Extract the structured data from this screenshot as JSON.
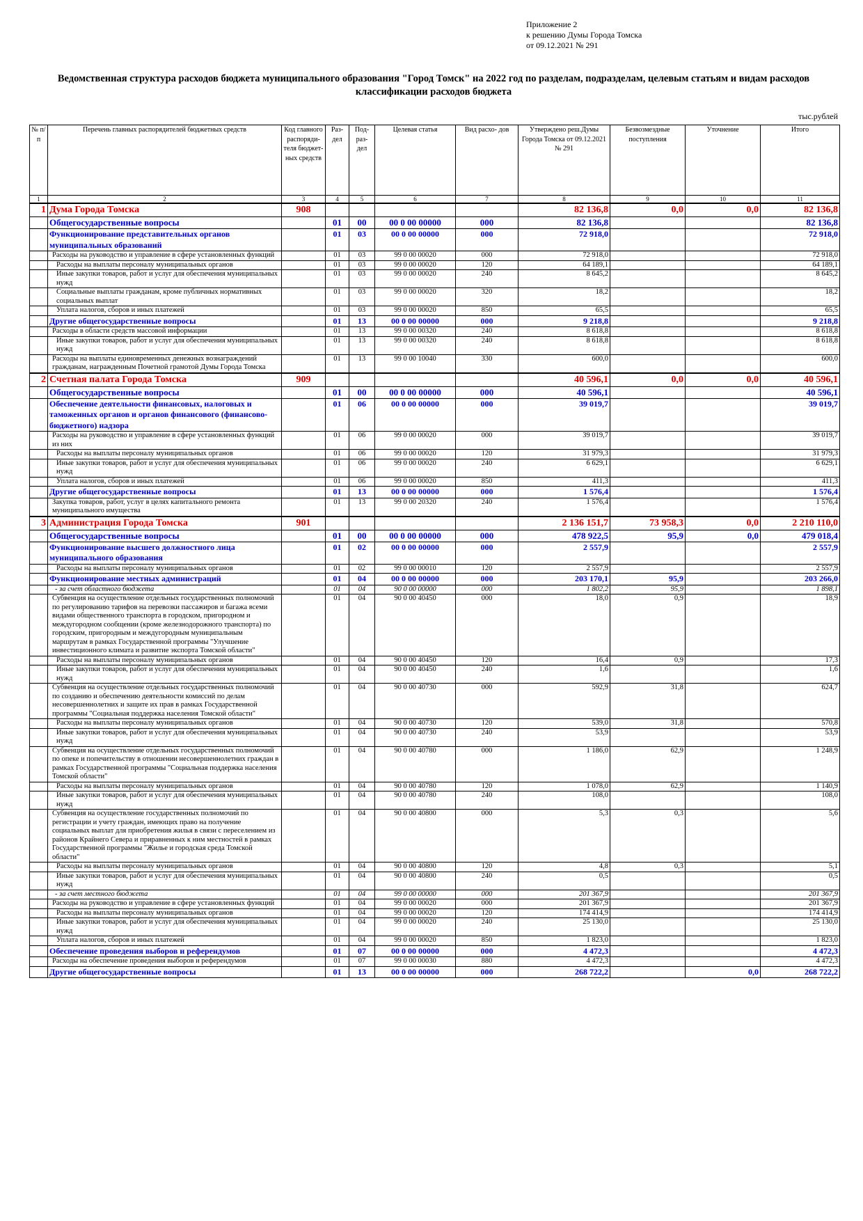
{
  "header": {
    "attachment_lines": [
      "Приложение 2",
      "к решению Думы Города Томска",
      "от 09.12.2021 № 291"
    ],
    "title": "Ведомственная структура расходов бюджета муниципального образования \"Город Томск\" на 2022 год по разделам, подразделам, целевым статьям и видам расходов классификации расходов бюджета",
    "units": "тыс.рублей"
  },
  "table": {
    "columns": [
      "№ п/п",
      "Перечень главных распорядителей бюджетных средств",
      "Код главного распоряди- теля бюджет- ных средств",
      "Раз- дел",
      "Под- раз- дел",
      "Целевая статья",
      "Вид расхо- дов",
      "Утверждено реш.Думы Города Томска от 09.12.2021 № 291",
      "Безвозмездные поступления",
      "Уточнение",
      "Итого"
    ],
    "column_numbers": [
      "1",
      "2",
      "3",
      "4",
      "5",
      "6",
      "7",
      "8",
      "9",
      "10",
      "11"
    ],
    "rows": [
      {
        "lvl": "lvl0",
        "c1": "1",
        "c2": "Дума Города Томска",
        "c3": "908",
        "c4": "",
        "c5": "",
        "c6": "",
        "c7": "",
        "c8": "82 136,8",
        "c9": "0,0",
        "c10": "0,0",
        "c11": "82 136,8"
      },
      {
        "lvl": "lvl1",
        "c1": "",
        "c2": "Общегосударственные вопросы",
        "c3": "",
        "c4": "01",
        "c5": "00",
        "c6": "00 0 00 00000",
        "c7": "000",
        "c8": "82 136,8",
        "c9": "",
        "c10": "",
        "c11": "82 136,8"
      },
      {
        "lvl": "lvl2",
        "c1": "",
        "c2": "Функционирование представительных органов муниципальных образований",
        "c3": "",
        "c4": "01",
        "c5": "03",
        "c6": "00 0 00 00000",
        "c7": "000",
        "c8": "72 918,0",
        "c9": "",
        "c10": "",
        "c11": "72 918,0"
      },
      {
        "lvl": "lvl3",
        "c1": "",
        "c2": "Расходы на руководство и управление в сфере установленных функций",
        "c3": "",
        "c4": "01",
        "c5": "03",
        "c6": "99 0 00 00020",
        "c7": "000",
        "c8": "72 918,0",
        "c9": "",
        "c10": "",
        "c11": "72 918,0"
      },
      {
        "lvl": "lvl4",
        "c1": "",
        "c2": "Расходы на выплаты персоналу муниципальных органов",
        "c3": "",
        "c4": "01",
        "c5": "03",
        "c6": "99 0 00 00020",
        "c7": "120",
        "c8": "64 189,1",
        "c9": "",
        "c10": "",
        "c11": "64 189,1"
      },
      {
        "lvl": "lvl4",
        "c1": "",
        "c2": "Иные закупки товаров, работ и услуг для обеспечения муниципальных нужд",
        "c3": "",
        "c4": "01",
        "c5": "03",
        "c6": "99 0 00 00020",
        "c7": "240",
        "c8": "8 645,2",
        "c9": "",
        "c10": "",
        "c11": "8 645,2"
      },
      {
        "lvl": "lvl4",
        "c1": "",
        "c2": "Социальные выплаты гражданам, кроме публичных нормативных социальных выплат",
        "c3": "",
        "c4": "01",
        "c5": "03",
        "c6": "99 0 00 00020",
        "c7": "320",
        "c8": "18,2",
        "c9": "",
        "c10": "",
        "c11": "18,2"
      },
      {
        "lvl": "lvl4",
        "c1": "",
        "c2": "Уплата налогов, сборов и иных платежей",
        "c3": "",
        "c4": "01",
        "c5": "03",
        "c6": "99 0 00 00020",
        "c7": "850",
        "c8": "65,5",
        "c9": "",
        "c10": "",
        "c11": "65,5"
      },
      {
        "lvl": "lvl2",
        "c1": "",
        "c2": "Другие общегосударственные вопросы",
        "c3": "",
        "c4": "01",
        "c5": "13",
        "c6": "00 0 00 00000",
        "c7": "000",
        "c8": "9 218,8",
        "c9": "",
        "c10": "",
        "c11": "9 218,8"
      },
      {
        "lvl": "lvl3",
        "c1": "",
        "c2": "Расходы в области средств массовой информации",
        "c3": "",
        "c4": "01",
        "c5": "13",
        "c6": "99 0 00 00320",
        "c7": "240",
        "c8": "8 618,8",
        "c9": "",
        "c10": "",
        "c11": "8 618,8"
      },
      {
        "lvl": "lvl4",
        "c1": "",
        "c2": "Иные закупки товаров, работ и услуг для обеспечения муниципальных нужд",
        "c3": "",
        "c4": "01",
        "c5": "13",
        "c6": "99 0 00 00320",
        "c7": "240",
        "c8": "8 618,8",
        "c9": "",
        "c10": "",
        "c11": "8 618,8"
      },
      {
        "lvl": "lvl3",
        "c1": "",
        "c2": "Расходы на выплаты единовременных денежных вознаграждений гражданам, награжденным Почетной грамотой Думы Города Томска",
        "c3": "",
        "c4": "01",
        "c5": "13",
        "c6": "99 0 00 10040",
        "c7": "330",
        "c8": "600,0",
        "c9": "",
        "c10": "",
        "c11": "600,0"
      },
      {
        "lvl": "lvl0",
        "c1": "2",
        "c2": "Счетная палата Города Томска",
        "c3": "909",
        "c4": "",
        "c5": "",
        "c6": "",
        "c7": "",
        "c8": "40 596,1",
        "c9": "0,0",
        "c10": "0,0",
        "c11": "40 596,1"
      },
      {
        "lvl": "lvl1",
        "c1": "",
        "c2": "Общегосударственные вопросы",
        "c3": "",
        "c4": "01",
        "c5": "00",
        "c6": "00 0 00 00000",
        "c7": "000",
        "c8": "40 596,1",
        "c9": "",
        "c10": "",
        "c11": "40 596,1"
      },
      {
        "lvl": "lvl2",
        "c1": "",
        "c2": "Обеспечение деятельности финансовых, налоговых и таможенных органов и органов финансового (финансово-бюджетного) надзора",
        "c3": "",
        "c4": "01",
        "c5": "06",
        "c6": "00 0 00 00000",
        "c7": "000",
        "c8": "39 019,7",
        "c9": "",
        "c10": "",
        "c11": "39 019,7"
      },
      {
        "lvl": "lvl3",
        "c1": "",
        "c2": "Расходы на руководство и управление в сфере установленных функций из них",
        "c3": "",
        "c4": "01",
        "c5": "06",
        "c6": "99 0 00 00020",
        "c7": "000",
        "c8": "39 019,7",
        "c9": "",
        "c10": "",
        "c11": "39 019,7"
      },
      {
        "lvl": "lvl4",
        "c1": "",
        "c2": "Расходы на выплаты персоналу муниципальных органов",
        "c3": "",
        "c4": "01",
        "c5": "06",
        "c6": "99 0 00 00020",
        "c7": "120",
        "c8": "31 979,3",
        "c9": "",
        "c10": "",
        "c11": "31 979,3"
      },
      {
        "lvl": "lvl4",
        "c1": "",
        "c2": "Иные закупки товаров, работ и услуг для обеспечения муниципальных нужд",
        "c3": "",
        "c4": "01",
        "c5": "06",
        "c6": "99 0 00 00020",
        "c7": "240",
        "c8": "6 629,1",
        "c9": "",
        "c10": "",
        "c11": "6 629,1"
      },
      {
        "lvl": "lvl4",
        "c1": "",
        "c2": "Уплата налогов, сборов и иных платежей",
        "c3": "",
        "c4": "01",
        "c5": "06",
        "c6": "99 0 00 00020",
        "c7": "850",
        "c8": "411,3",
        "c9": "",
        "c10": "",
        "c11": "411,3"
      },
      {
        "lvl": "lvl2",
        "c1": "",
        "c2": "Другие общегосударственные вопросы",
        "c3": "",
        "c4": "01",
        "c5": "13",
        "c6": "00 0 00 00000",
        "c7": "000",
        "c8": "1 576,4",
        "c9": "",
        "c10": "",
        "c11": "1 576,4"
      },
      {
        "lvl": "lvl3",
        "c1": "",
        "c2": "Закупка товаров, работ, услуг в целях капитального ремонта муниципального имущества",
        "c3": "",
        "c4": "01",
        "c5": "13",
        "c6": "99 0 00 20320",
        "c7": "240",
        "c8": "1 576,4",
        "c9": "",
        "c10": "",
        "c11": "1 576,4"
      },
      {
        "lvl": "lvl0",
        "c1": "3",
        "c2": "Администрация Города Томска",
        "c3": "901",
        "c4": "",
        "c5": "",
        "c6": "",
        "c7": "",
        "c8": "2 136 151,7",
        "c9": "73 958,3",
        "c10": "0,0",
        "c11": "2 210 110,0"
      },
      {
        "lvl": "lvl1",
        "c1": "",
        "c2": "Общегосударственные вопросы",
        "c3": "",
        "c4": "01",
        "c5": "00",
        "c6": "00 0 00 00000",
        "c7": "000",
        "c8": "478 922,5",
        "c9": "95,9",
        "c10": "0,0",
        "c11": "479 018,4"
      },
      {
        "lvl": "lvl2",
        "c1": "",
        "c2": "Функционирование высшего должностного лица муниципального образования",
        "c3": "",
        "c4": "01",
        "c5": "02",
        "c6": "00 0 00 00000",
        "c7": "000",
        "c8": "2 557,9",
        "c9": "",
        "c10": "",
        "c11": "2 557,9"
      },
      {
        "lvl": "lvl4",
        "c1": "",
        "c2": "Расходы на выплаты персоналу муниципальных органов",
        "c3": "",
        "c4": "01",
        "c5": "02",
        "c6": "99 0 00 00010",
        "c7": "120",
        "c8": "2 557,9",
        "c9": "",
        "c10": "",
        "c11": "2 557,9"
      },
      {
        "lvl": "lvl2",
        "c1": "",
        "c2": "Функционирование местных администраций",
        "c3": "",
        "c4": "01",
        "c5": "04",
        "c6": "00 0 00 00000",
        "c7": "000",
        "c8": "203 170,1",
        "c9": "95,9",
        "c10": "",
        "c11": "203 266,0"
      },
      {
        "lvl": "src",
        "c1": "",
        "c2": "- за счет областного бюджета",
        "c3": "",
        "c4": "01",
        "c5": "04",
        "c6": "90 0 00 00000",
        "c7": "000",
        "c8": "1 802,2",
        "c9": "95,9",
        "c10": "",
        "c11": "1 898,1"
      },
      {
        "lvl": "lvl3",
        "c1": "",
        "c2": "Субвенция на осуществление отдельных государственных полномочий по регулированию тарифов на перевозки пассажиров и багажа всеми видами общественного транспорта в городском, пригородном и междугородном сообщении (кроме железнодорожного транспорта) по городским, пригородным и междугородным муниципальным маршрутам в рамках Государственной программы \"Улучшение инвестиционного климата и развитие экспорта Томской области\"",
        "c3": "",
        "c4": "01",
        "c5": "04",
        "c6": "90 0 00 40450",
        "c7": "000",
        "c8": "18,0",
        "c9": "0,9",
        "c10": "",
        "c11": "18,9"
      },
      {
        "lvl": "lvl4",
        "c1": "",
        "c2": "Расходы на выплаты персоналу муниципальных органов",
        "c3": "",
        "c4": "01",
        "c5": "04",
        "c6": "90 0 00 40450",
        "c7": "120",
        "c8": "16,4",
        "c9": "0,9",
        "c10": "",
        "c11": "17,3"
      },
      {
        "lvl": "lvl4",
        "c1": "",
        "c2": "Иные закупки товаров, работ и услуг для обеспечения муниципальных нужд",
        "c3": "",
        "c4": "01",
        "c5": "04",
        "c6": "90 0 00 40450",
        "c7": "240",
        "c8": "1,6",
        "c9": "",
        "c10": "",
        "c11": "1,6"
      },
      {
        "lvl": "lvl3",
        "c1": "",
        "c2": "Субвенция на осуществление отдельных государственных полномочий по созданию и обеспечению деятельности комиссий по делам несовершеннолетних и защите их прав в рамках Государственной программы \"Социальная поддержка населения Томской области\"",
        "c3": "",
        "c4": "01",
        "c5": "04",
        "c6": "90 0 00 40730",
        "c7": "000",
        "c8": "592,9",
        "c9": "31,8",
        "c10": "",
        "c11": "624,7"
      },
      {
        "lvl": "lvl4",
        "c1": "",
        "c2": "Расходы на выплаты персоналу муниципальных органов",
        "c3": "",
        "c4": "01",
        "c5": "04",
        "c6": "90 0 00 40730",
        "c7": "120",
        "c8": "539,0",
        "c9": "31,8",
        "c10": "",
        "c11": "570,8"
      },
      {
        "lvl": "lvl4",
        "c1": "",
        "c2": "Иные закупки товаров, работ и услуг для обеспечения муниципальных нужд",
        "c3": "",
        "c4": "01",
        "c5": "04",
        "c6": "90 0 00 40730",
        "c7": "240",
        "c8": "53,9",
        "c9": "",
        "c10": "",
        "c11": "53,9"
      },
      {
        "lvl": "lvl3",
        "c1": "",
        "c2": "Субвенция на осуществление отдельных государственных полномочий по опеке и попечительству в отношении несовершеннолетних граждан в рамках Государственной программы \"Социальная поддержка населения Томской области\"",
        "c3": "",
        "c4": "01",
        "c5": "04",
        "c6": "90 0 00 40780",
        "c7": "000",
        "c8": "1 186,0",
        "c9": "62,9",
        "c10": "",
        "c11": "1 248,9"
      },
      {
        "lvl": "lvl4",
        "c1": "",
        "c2": "Расходы на выплаты персоналу муниципальных органов",
        "c3": "",
        "c4": "01",
        "c5": "04",
        "c6": "90 0 00 40780",
        "c7": "120",
        "c8": "1 078,0",
        "c9": "62,9",
        "c10": "",
        "c11": "1 140,9"
      },
      {
        "lvl": "lvl4",
        "c1": "",
        "c2": "Иные закупки товаров, работ и услуг для обеспечения муниципальных нужд",
        "c3": "",
        "c4": "01",
        "c5": "04",
        "c6": "90 0 00 40780",
        "c7": "240",
        "c8": "108,0",
        "c9": "",
        "c10": "",
        "c11": "108,0"
      },
      {
        "lvl": "lvl3",
        "c1": "",
        "c2": "Субвенция на осуществление государственных полномочий по регистрации и учету граждан, имеющих право на получение социальных выплат для приобретения жилья в связи с переселением из районов Крайнего Севера и приравненных к ним местностей в рамках Государственной программы \"Жилье и городская среда Томской области\"",
        "c3": "",
        "c4": "01",
        "c5": "04",
        "c6": "90 0 00 40800",
        "c7": "000",
        "c8": "5,3",
        "c9": "0,3",
        "c10": "",
        "c11": "5,6"
      },
      {
        "lvl": "lvl4",
        "c1": "",
        "c2": "Расходы на выплаты персоналу муниципальных органов",
        "c3": "",
        "c4": "01",
        "c5": "04",
        "c6": "90 0 00 40800",
        "c7": "120",
        "c8": "4,8",
        "c9": "0,3",
        "c10": "",
        "c11": "5,1"
      },
      {
        "lvl": "lvl4",
        "c1": "",
        "c2": "Иные закупки товаров, работ и услуг для обеспечения муниципальных нужд",
        "c3": "",
        "c4": "01",
        "c5": "04",
        "c6": "90 0 00 40800",
        "c7": "240",
        "c8": "0,5",
        "c9": "",
        "c10": "",
        "c11": "0,5"
      },
      {
        "lvl": "src",
        "c1": "",
        "c2": "- за счет местного бюджета",
        "c3": "",
        "c4": "01",
        "c5": "04",
        "c6": "99 0 00 00000",
        "c7": "000",
        "c8": "201 367,9",
        "c9": "",
        "c10": "",
        "c11": "201 367,9"
      },
      {
        "lvl": "lvl3",
        "c1": "",
        "c2": "Расходы на руководство и управление в сфере установленных функций",
        "c3": "",
        "c4": "01",
        "c5": "04",
        "c6": "99 0 00 00020",
        "c7": "000",
        "c8": "201 367,9",
        "c9": "",
        "c10": "",
        "c11": "201 367,9"
      },
      {
        "lvl": "lvl4",
        "c1": "",
        "c2": "Расходы на выплаты персоналу муниципальных органов",
        "c3": "",
        "c4": "01",
        "c5": "04",
        "c6": "99 0 00 00020",
        "c7": "120",
        "c8": "174 414,9",
        "c9": "",
        "c10": "",
        "c11": "174 414,9"
      },
      {
        "lvl": "lvl4",
        "c1": "",
        "c2": "Иные закупки товаров, работ и услуг для обеспечения муниципальных нужд",
        "c3": "",
        "c4": "01",
        "c5": "04",
        "c6": "99 0 00 00020",
        "c7": "240",
        "c8": "25 130,0",
        "c9": "",
        "c10": "",
        "c11": "25 130,0"
      },
      {
        "lvl": "lvl4",
        "c1": "",
        "c2": "Уплата налогов, сборов и иных платежей",
        "c3": "",
        "c4": "01",
        "c5": "04",
        "c6": "99 0 00 00020",
        "c7": "850",
        "c8": "1 823,0",
        "c9": "",
        "c10": "",
        "c11": "1 823,0"
      },
      {
        "lvl": "lvl2",
        "c1": "",
        "c2": "Обеспечение проведения выборов и референдумов",
        "c3": "",
        "c4": "01",
        "c5": "07",
        "c6": "00 0 00 00000",
        "c7": "000",
        "c8": "4 472,3",
        "c9": "",
        "c10": "",
        "c11": "4 472,3"
      },
      {
        "lvl": "lvl3",
        "c1": "",
        "c2": "Расходы на обеспечение проведения выборов и референдумов",
        "c3": "",
        "c4": "01",
        "c5": "07",
        "c6": "99 0 00 00030",
        "c7": "880",
        "c8": "4 472,3",
        "c9": "",
        "c10": "",
        "c11": "4 472,3"
      },
      {
        "lvl": "lvl2",
        "c1": "",
        "c2": "Другие общегосударственные вопросы",
        "c3": "",
        "c4": "01",
        "c5": "13",
        "c6": "00 0 00 00000",
        "c7": "000",
        "c8": "268 722,2",
        "c9": "",
        "c10": "0,0",
        "c11": "268 722,2"
      }
    ]
  }
}
